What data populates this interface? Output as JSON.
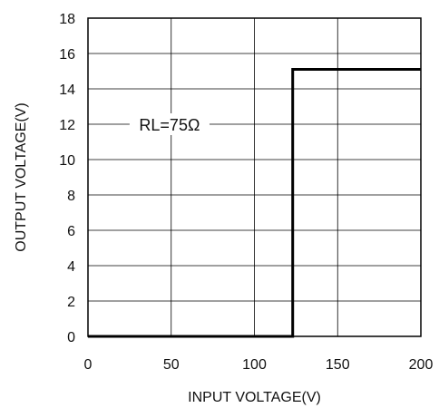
{
  "chart_data": {
    "type": "line",
    "xlabel": "INPUT VOLTAGE(V)",
    "ylabel": "OUTPUT VOLTAGE(V)",
    "xlim": [
      0,
      200
    ],
    "ylim": [
      0,
      18
    ],
    "xticks": [
      0,
      50,
      100,
      150,
      200
    ],
    "yticks": [
      0,
      2,
      4,
      6,
      8,
      10,
      12,
      14,
      16,
      18
    ],
    "grid": true,
    "annotation": "RL=75Ω",
    "series": [
      {
        "x": [
          0,
          123,
          123,
          200
        ],
        "y": [
          0,
          0,
          15.1,
          15.1
        ]
      }
    ],
    "line_color": "#000000"
  }
}
